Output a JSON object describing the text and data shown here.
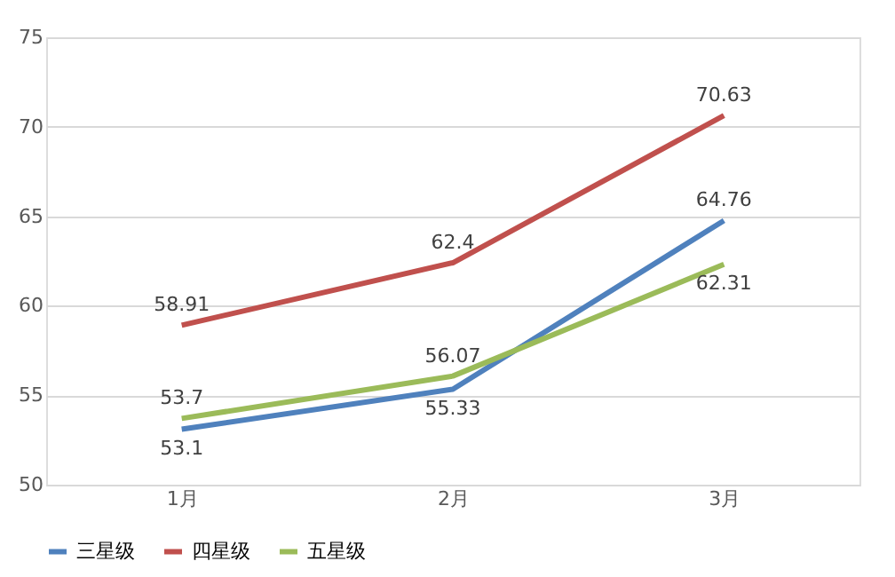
{
  "chart_data": {
    "type": "line",
    "categories": [
      "1月",
      "2月",
      "3月"
    ],
    "series": [
      {
        "name": "三星级",
        "color": "#4f81bd",
        "values": [
          53.1,
          55.33,
          64.76
        ]
      },
      {
        "name": "四星级",
        "color": "#c0504d",
        "values": [
          58.91,
          62.4,
          70.63
        ]
      },
      {
        "name": "五星级",
        "color": "#9bbb59",
        "values": [
          53.7,
          56.07,
          62.31
        ]
      }
    ],
    "ylim": [
      50,
      75
    ],
    "yticks": [
      50,
      55,
      60,
      65,
      70,
      75
    ],
    "grid": "y",
    "legend": "bottom",
    "data_labels": true,
    "marker": "none",
    "line_style": "solid"
  }
}
